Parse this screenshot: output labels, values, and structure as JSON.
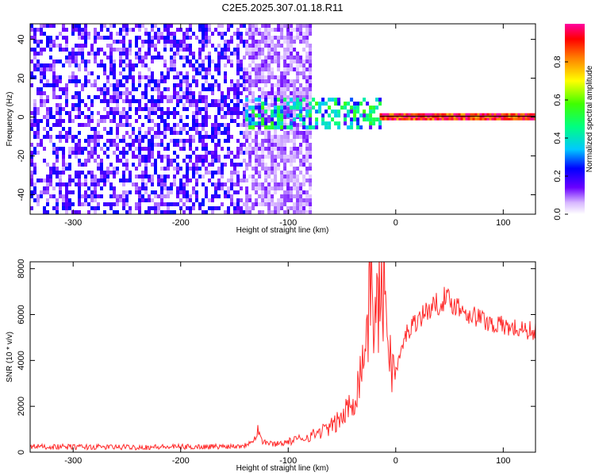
{
  "title": "C2E5.2025.307.01.18.R11",
  "colors": {
    "spectrum_min": "#ffffff",
    "spectrum_mid": "#6a00ff",
    "spectrum_high": "#ff0000",
    "snr_line": "#ff2a2a"
  },
  "chart_data": [
    {
      "type": "heatmap",
      "xlabel": "Height of straight line (km)",
      "ylabel": "Frequency (Hz)",
      "xlim": [
        -340,
        130
      ],
      "ylim": [
        -50,
        48
      ],
      "xticks": [
        -300,
        -200,
        -100,
        0,
        100
      ],
      "yticks": [
        -40,
        -20,
        0,
        20,
        40
      ],
      "colorbar": {
        "label": "Normalized spectral amplitude",
        "range": [
          0,
          1
        ],
        "ticks": [
          "0.0",
          "0.2",
          "0.4",
          "0.6",
          "0.8"
        ],
        "tick_values": [
          0.0,
          0.2,
          0.4,
          0.6,
          0.8
        ]
      },
      "regions": [
        {
          "x_from": -340,
          "x_to": -140,
          "freq_from": -50,
          "freq_to": 48,
          "amplitude": 0.15
        },
        {
          "x_from": -140,
          "x_to": -80,
          "freq_from": -50,
          "freq_to": 48,
          "amplitude": 0.08
        },
        {
          "x_from": -140,
          "x_to": -15,
          "freq_from": -5,
          "freq_to": 10,
          "amplitude": 0.35
        },
        {
          "x_from": -15,
          "x_to": 130,
          "freq_from": -1,
          "freq_to": 2,
          "amplitude": 0.9
        }
      ]
    },
    {
      "type": "line",
      "xlabel": "Height of straight line (km)",
      "ylabel": "SNR (10 * v/v)",
      "xlim": [
        -340,
        130
      ],
      "ylim": [
        0,
        8300
      ],
      "xticks": [
        -300,
        -200,
        -100,
        0,
        100
      ],
      "yticks": [
        0,
        2000,
        4000,
        6000,
        8000
      ],
      "series": [
        {
          "x": [
            -340,
            -300,
            -250,
            -200,
            -160,
            -140,
            -130,
            -128,
            -125,
            -115,
            -100,
            -80,
            -60,
            -50,
            -40,
            -35,
            -30,
            -25,
            -22,
            -20,
            -15,
            -10,
            -5,
            0,
            10,
            20,
            30,
            40,
            45,
            50,
            60,
            70,
            80,
            90,
            100,
            110,
            120,
            130
          ],
          "y": [
            250,
            230,
            220,
            230,
            250,
            300,
            700,
            1100,
            500,
            350,
            450,
            700,
            1100,
            1500,
            2200,
            3000,
            4200,
            6000,
            8300,
            5500,
            6800,
            7200,
            4000,
            3500,
            5200,
            5800,
            6200,
            6500,
            6700,
            6600,
            6300,
            6000,
            5800,
            5600,
            5500,
            5400,
            5300,
            5300
          ]
        }
      ]
    }
  ]
}
